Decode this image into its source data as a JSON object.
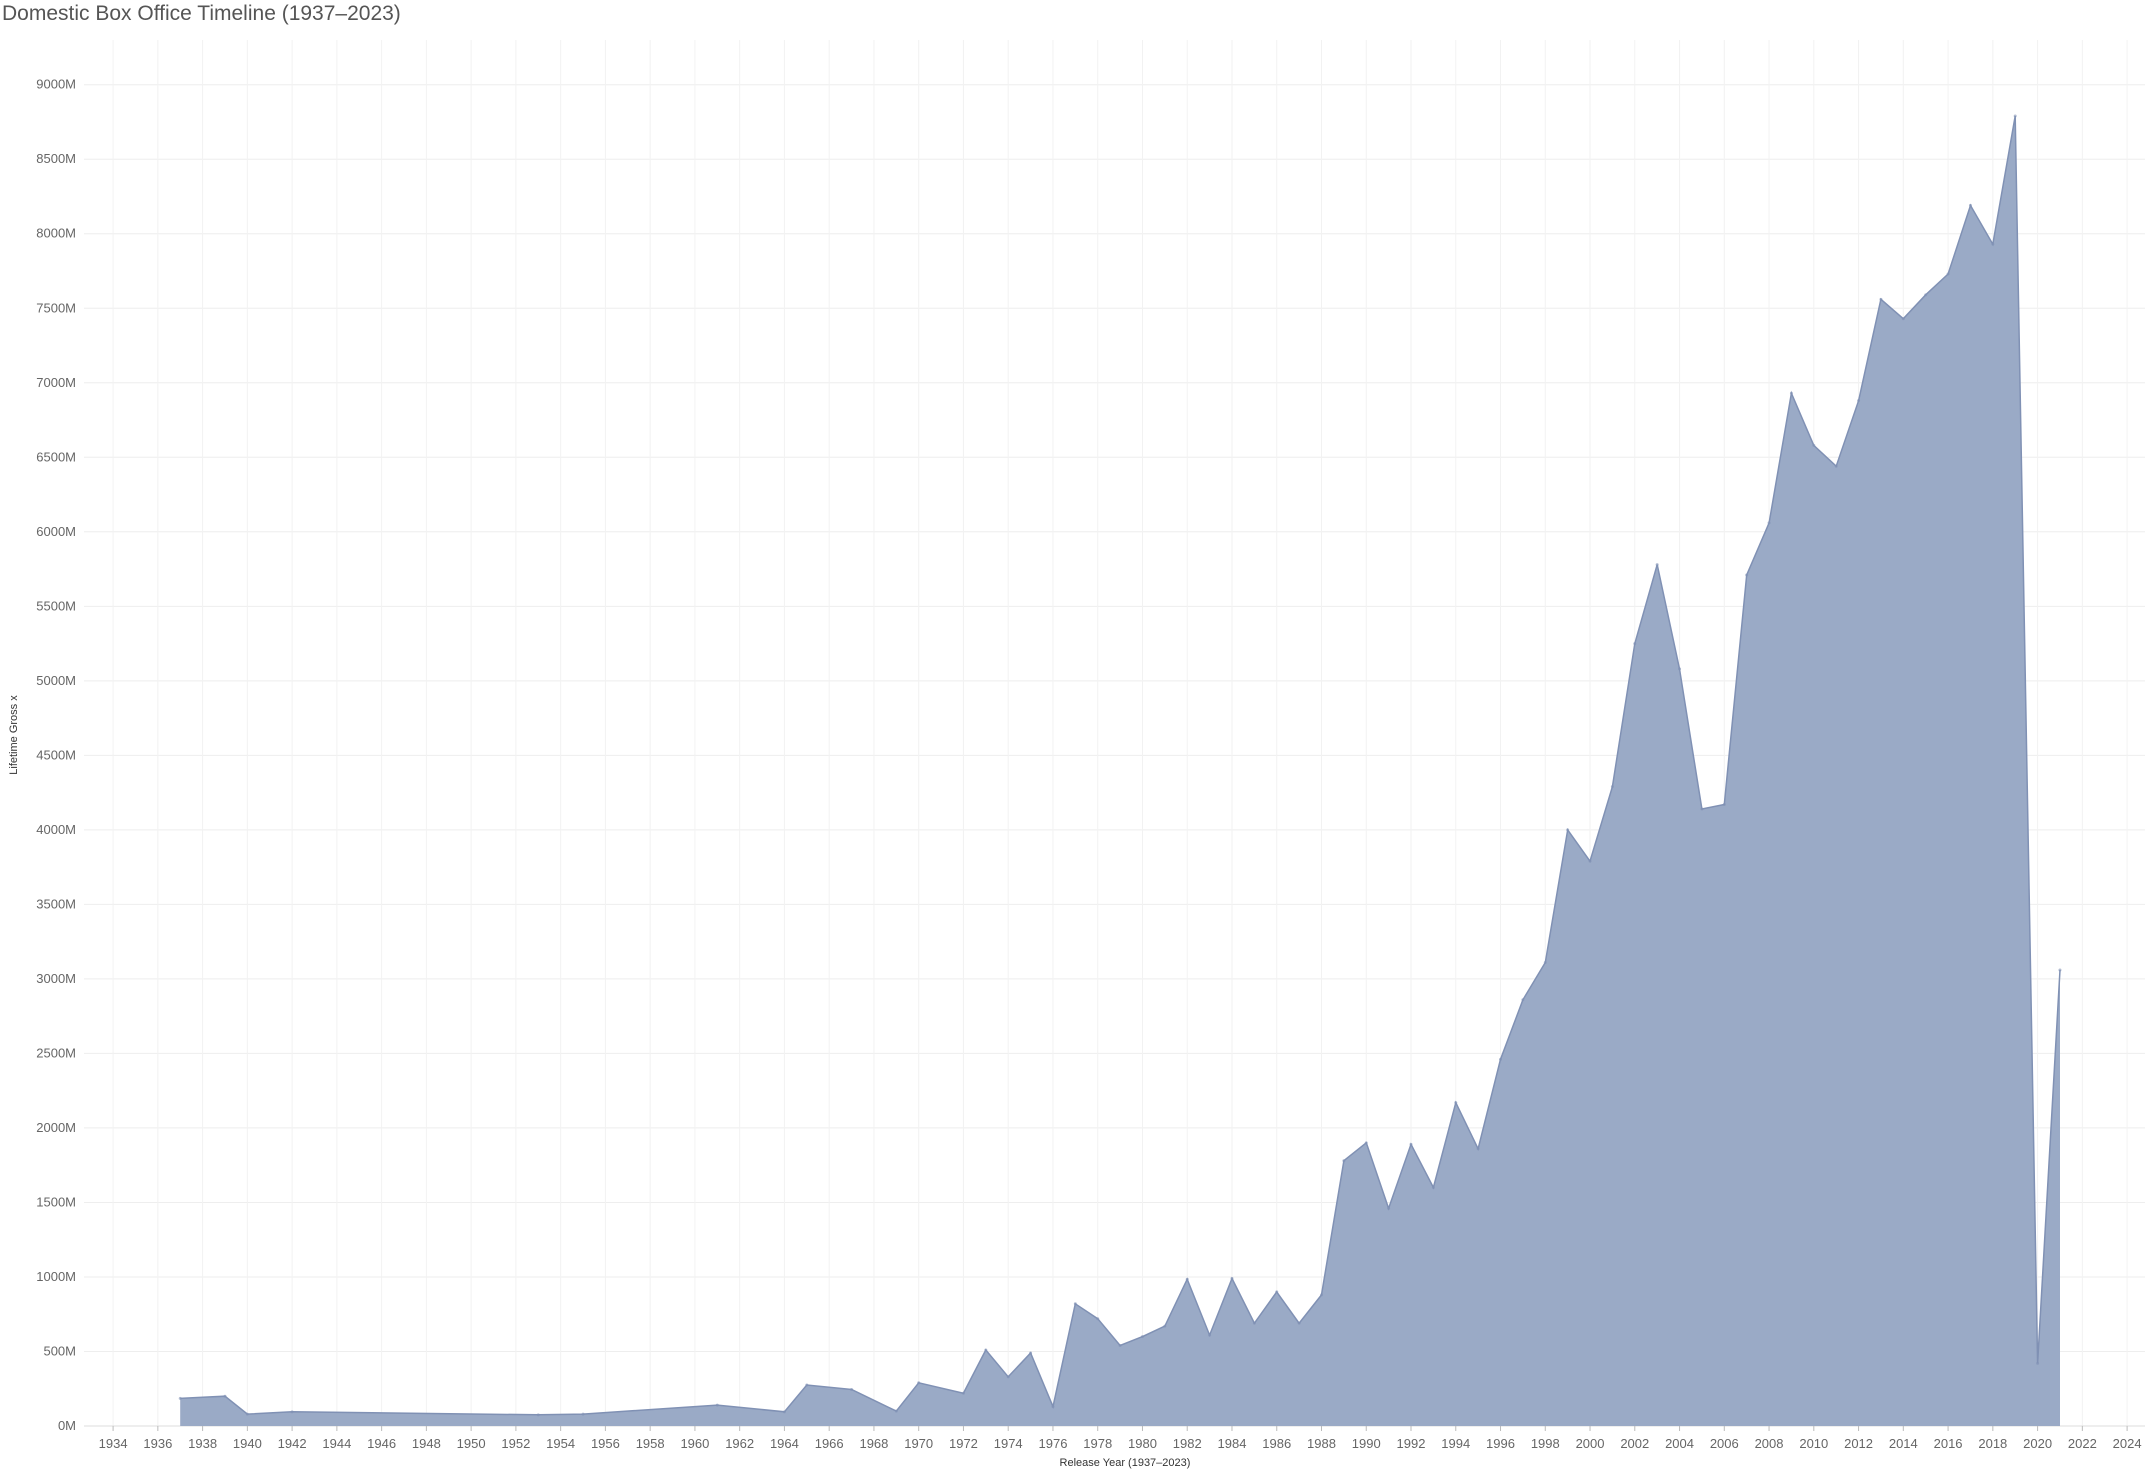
{
  "chart_data": {
    "type": "area",
    "title": "Domestic Box Office Timeline (1937–2023)",
    "xlabel": "Release Year (1937–2023)",
    "ylabel": "Lifetime Gross x",
    "xlim": [
      1932.7,
      2024.8
    ],
    "ylim": [
      0,
      9300
    ],
    "y_unit": "M",
    "grid": true,
    "color": "#9aaac6",
    "line_color": "#8091b4",
    "x_ticks": [
      1934,
      1936,
      1938,
      1940,
      1942,
      1944,
      1946,
      1948,
      1950,
      1952,
      1954,
      1956,
      1958,
      1960,
      1962,
      1964,
      1966,
      1968,
      1970,
      1972,
      1974,
      1976,
      1978,
      1980,
      1982,
      1984,
      1986,
      1988,
      1990,
      1992,
      1994,
      1996,
      1998,
      2000,
      2002,
      2004,
      2006,
      2008,
      2010,
      2012,
      2014,
      2016,
      2018,
      2020,
      2022,
      2024
    ],
    "y_ticks": [
      {
        "value": 0,
        "label": "0M"
      },
      {
        "value": 500,
        "label": "500M"
      },
      {
        "value": 1000,
        "label": "1000M"
      },
      {
        "value": 1500,
        "label": "1500M"
      },
      {
        "value": 2000,
        "label": "2000M"
      },
      {
        "value": 2500,
        "label": "2500M"
      },
      {
        "value": 3000,
        "label": "3000M"
      },
      {
        "value": 3500,
        "label": "3500M"
      },
      {
        "value": 4000,
        "label": "4000M"
      },
      {
        "value": 4500,
        "label": "4500M"
      },
      {
        "value": 5000,
        "label": "5000M"
      },
      {
        "value": 5500,
        "label": "5500M"
      },
      {
        "value": 6000,
        "label": "6000M"
      },
      {
        "value": 6500,
        "label": "6500M"
      },
      {
        "value": 7000,
        "label": "7000M"
      },
      {
        "value": 7500,
        "label": "7500M"
      },
      {
        "value": 8000,
        "label": "8000M"
      },
      {
        "value": 8500,
        "label": "8500M"
      },
      {
        "value": 9000,
        "label": "9000M"
      }
    ],
    "x": [
      1937,
      1939,
      1940,
      1942,
      1953,
      1955,
      1961,
      1964,
      1965,
      1967,
      1969,
      1970,
      1972,
      1973,
      1974,
      1975,
      1976,
      1977,
      1978,
      1979,
      1980,
      1981,
      1982,
      1983,
      1984,
      1985,
      1986,
      1987,
      1988,
      1989,
      1990,
      1991,
      1992,
      1993,
      1994,
      1995,
      1996,
      1997,
      1998,
      1999,
      2000,
      2001,
      2002,
      2003,
      2004,
      2005,
      2006,
      2007,
      2008,
      2009,
      2010,
      2011,
      2012,
      2013,
      2014,
      2015,
      2016,
      2017,
      2018,
      2019,
      2020,
      2021
    ],
    "values": [
      185,
      200,
      80,
      95,
      75,
      80,
      140,
      95,
      275,
      245,
      100,
      290,
      220,
      510,
      330,
      490,
      130,
      820,
      720,
      540,
      600,
      670,
      985,
      610,
      990,
      690,
      900,
      690,
      880,
      1780,
      1900,
      1460,
      1890,
      1600,
      2170,
      1860,
      2460,
      2860,
      3110,
      4000,
      3790,
      4290,
      5250,
      5780,
      5080,
      4140,
      4170,
      5710,
      6060,
      6930,
      6580,
      6440,
      6880,
      7560,
      7430,
      7590,
      7730,
      8190,
      7930,
      8790,
      420,
      3060
    ]
  }
}
